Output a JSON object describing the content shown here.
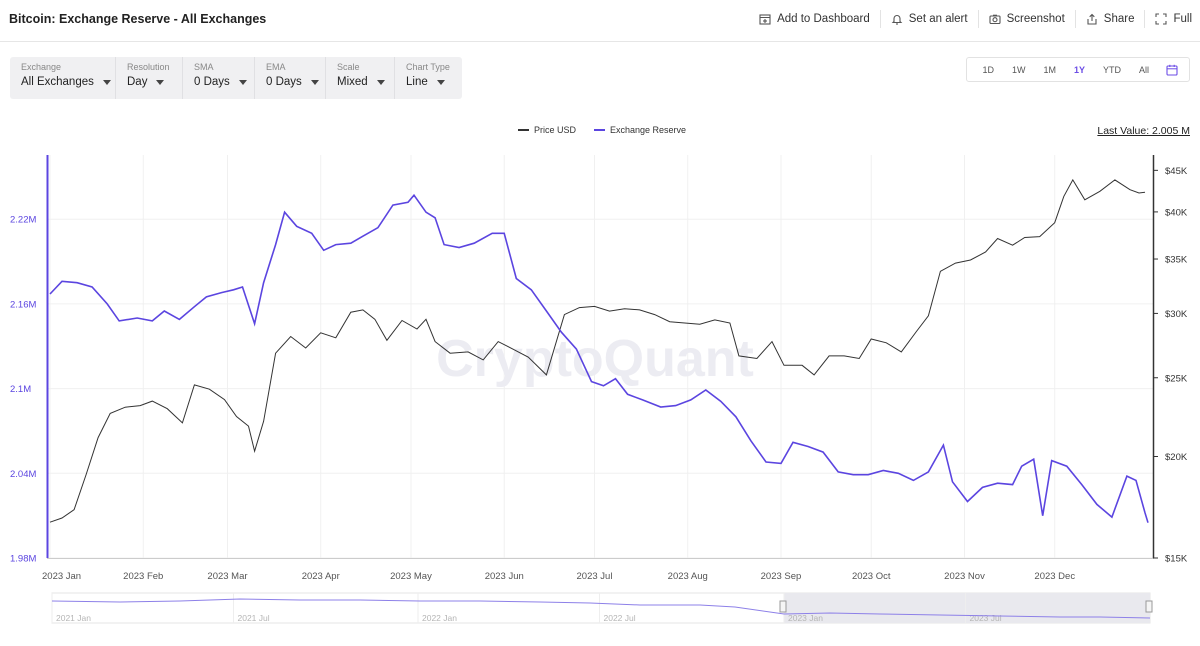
{
  "header": {
    "title": "Bitcoin: Exchange Reserve - All Exchanges",
    "actions": [
      {
        "label": "Add to Dashboard",
        "icon": "add-dashboard-icon"
      },
      {
        "label": "Set an alert",
        "icon": "bell-icon"
      },
      {
        "label": "Screenshot",
        "icon": "camera-icon"
      },
      {
        "label": "Share",
        "icon": "share-icon"
      },
      {
        "label": "Full",
        "icon": "fullscreen-icon"
      }
    ]
  },
  "filters": [
    {
      "label": "Exchange",
      "value": "All Exchanges"
    },
    {
      "label": "Resolution",
      "value": "Day"
    },
    {
      "label": "SMA",
      "value": "0 Days"
    },
    {
      "label": "EMA",
      "value": "0 Days"
    },
    {
      "label": "Scale",
      "value": "Mixed"
    },
    {
      "label": "Chart Type",
      "value": "Line"
    }
  ],
  "ranges": {
    "options": [
      "1D",
      "1W",
      "1M",
      "1Y",
      "YTD",
      "All"
    ],
    "active": "1Y",
    "calendar_icon": "calendar-icon"
  },
  "legend": {
    "price_label": "Price USD",
    "reserve_label": "Exchange Reserve"
  },
  "last_value": "Last Value: 2.005 M",
  "watermark": "CryptoQuant",
  "colors": {
    "reserve": "#5b45e0",
    "price": "#333333",
    "grid": "#f0f0f0",
    "navigator_fill": "#e9e9ee"
  },
  "chart_data": {
    "type": "line",
    "x_tick_labels": [
      "2023 Jan",
      "2023 Feb",
      "2023 Mar",
      "2023 Apr",
      "2023 May",
      "2023 Jun",
      "2023 Jul",
      "2023 Aug",
      "2023 Sep",
      "2023 Oct",
      "2023 Nov",
      "2023 Dec"
    ],
    "left_axis": {
      "tick_labels": [
        "1.98M",
        "2.04M",
        "2.1M",
        "2.16M",
        "2.22M"
      ],
      "ticks": [
        1.98,
        2.04,
        2.1,
        2.16,
        2.22
      ],
      "ylim": [
        1.98,
        2.2655
      ],
      "unit": "M BTC"
    },
    "right_axis": {
      "tick_labels": [
        "$15K",
        "$20K",
        "$25K",
        "$30K",
        "$35K",
        "$40K",
        "$45K"
      ],
      "ticks": [
        15000,
        20000,
        25000,
        30000,
        35000,
        40000,
        45000
      ],
      "scale": "log",
      "ylim": [
        15000,
        47000
      ]
    },
    "series": [
      {
        "name": "Exchange Reserve",
        "axis": "left",
        "points": [
          [
            "2023-01-01",
            2.167
          ],
          [
            "2023-01-05",
            2.176
          ],
          [
            "2023-01-10",
            2.175
          ],
          [
            "2023-01-15",
            2.172
          ],
          [
            "2023-01-20",
            2.16
          ],
          [
            "2023-01-24",
            2.148
          ],
          [
            "2023-01-30",
            2.15
          ],
          [
            "2023-02-04",
            2.148
          ],
          [
            "2023-02-08",
            2.155
          ],
          [
            "2023-02-13",
            2.149
          ],
          [
            "2023-02-18",
            2.158
          ],
          [
            "2023-02-22",
            2.165
          ],
          [
            "2023-02-27",
            2.168
          ],
          [
            "2023-03-03",
            2.17
          ],
          [
            "2023-03-06",
            2.172
          ],
          [
            "2023-03-10",
            2.146
          ],
          [
            "2023-03-13",
            2.175
          ],
          [
            "2023-03-17",
            2.202
          ],
          [
            "2023-03-20",
            2.225
          ],
          [
            "2023-03-24",
            2.215
          ],
          [
            "2023-03-29",
            2.21
          ],
          [
            "2023-04-02",
            2.198
          ],
          [
            "2023-04-06",
            2.202
          ],
          [
            "2023-04-11",
            2.203
          ],
          [
            "2023-04-15",
            2.208
          ],
          [
            "2023-04-20",
            2.214
          ],
          [
            "2023-04-25",
            2.23
          ],
          [
            "2023-04-30",
            2.232
          ],
          [
            "2023-05-02",
            2.237
          ],
          [
            "2023-05-06",
            2.225
          ],
          [
            "2023-05-09",
            2.221
          ],
          [
            "2023-05-12",
            2.202
          ],
          [
            "2023-05-17",
            2.2
          ],
          [
            "2023-05-22",
            2.203
          ],
          [
            "2023-05-28",
            2.21
          ],
          [
            "2023-06-01",
            2.21
          ],
          [
            "2023-06-05",
            2.178
          ],
          [
            "2023-06-10",
            2.17
          ],
          [
            "2023-06-15",
            2.155
          ],
          [
            "2023-06-20",
            2.14
          ],
          [
            "2023-06-25",
            2.128
          ],
          [
            "2023-06-30",
            2.105
          ],
          [
            "2023-07-04",
            2.102
          ],
          [
            "2023-07-08",
            2.107
          ],
          [
            "2023-07-12",
            2.096
          ],
          [
            "2023-07-17",
            2.092
          ],
          [
            "2023-07-23",
            2.087
          ],
          [
            "2023-07-28",
            2.088
          ],
          [
            "2023-08-02",
            2.092
          ],
          [
            "2023-08-07",
            2.099
          ],
          [
            "2023-08-12",
            2.091
          ],
          [
            "2023-08-17",
            2.08
          ],
          [
            "2023-08-22",
            2.063
          ],
          [
            "2023-08-27",
            2.048
          ],
          [
            "2023-09-01",
            2.047
          ],
          [
            "2023-09-05",
            2.062
          ],
          [
            "2023-09-10",
            2.059
          ],
          [
            "2023-09-15",
            2.055
          ],
          [
            "2023-09-20",
            2.041
          ],
          [
            "2023-09-25",
            2.039
          ],
          [
            "2023-09-30",
            2.039
          ],
          [
            "2023-10-05",
            2.042
          ],
          [
            "2023-10-10",
            2.04
          ],
          [
            "2023-10-15",
            2.035
          ],
          [
            "2023-10-20",
            2.041
          ],
          [
            "2023-10-25",
            2.06
          ],
          [
            "2023-10-28",
            2.034
          ],
          [
            "2023-11-02",
            2.02
          ],
          [
            "2023-11-07",
            2.03
          ],
          [
            "2023-11-12",
            2.033
          ],
          [
            "2023-11-17",
            2.032
          ],
          [
            "2023-11-20",
            2.045
          ],
          [
            "2023-11-24",
            2.05
          ],
          [
            "2023-11-27",
            2.01
          ],
          [
            "2023-11-30",
            2.049
          ],
          [
            "2023-12-05",
            2.045
          ],
          [
            "2023-12-10",
            2.032
          ],
          [
            "2023-12-15",
            2.018
          ],
          [
            "2023-12-20",
            2.009
          ],
          [
            "2023-12-25",
            2.038
          ],
          [
            "2023-12-28",
            2.035
          ],
          [
            "2023-12-31",
            2.012
          ],
          [
            "2024-01-01",
            2.005
          ]
        ]
      },
      {
        "name": "Price USD",
        "axis": "right",
        "points": [
          [
            "2023-01-01",
            16600
          ],
          [
            "2023-01-05",
            16800
          ],
          [
            "2023-01-09",
            17200
          ],
          [
            "2023-01-13",
            19000
          ],
          [
            "2023-01-17",
            21100
          ],
          [
            "2023-01-21",
            22600
          ],
          [
            "2023-01-26",
            23000
          ],
          [
            "2023-01-31",
            23100
          ],
          [
            "2023-02-04",
            23400
          ],
          [
            "2023-02-09",
            22900
          ],
          [
            "2023-02-14",
            22000
          ],
          [
            "2023-02-18",
            24500
          ],
          [
            "2023-02-23",
            24200
          ],
          [
            "2023-02-28",
            23500
          ],
          [
            "2023-03-04",
            22400
          ],
          [
            "2023-03-08",
            21800
          ],
          [
            "2023-03-10",
            20300
          ],
          [
            "2023-03-13",
            22100
          ],
          [
            "2023-03-17",
            26800
          ],
          [
            "2023-03-22",
            28100
          ],
          [
            "2023-03-27",
            27200
          ],
          [
            "2023-04-01",
            28400
          ],
          [
            "2023-04-06",
            28000
          ],
          [
            "2023-04-11",
            30100
          ],
          [
            "2023-04-15",
            30300
          ],
          [
            "2023-04-19",
            29500
          ],
          [
            "2023-04-23",
            27800
          ],
          [
            "2023-04-28",
            29400
          ],
          [
            "2023-05-03",
            28700
          ],
          [
            "2023-05-06",
            29500
          ],
          [
            "2023-05-09",
            27700
          ],
          [
            "2023-05-14",
            26800
          ],
          [
            "2023-05-20",
            26900
          ],
          [
            "2023-05-25",
            26300
          ],
          [
            "2023-05-30",
            27700
          ],
          [
            "2023-06-04",
            27100
          ],
          [
            "2023-06-09",
            26500
          ],
          [
            "2023-06-15",
            25200
          ],
          [
            "2023-06-21",
            29900
          ],
          [
            "2023-06-26",
            30500
          ],
          [
            "2023-07-01",
            30600
          ],
          [
            "2023-07-06",
            30200
          ],
          [
            "2023-07-11",
            30400
          ],
          [
            "2023-07-16",
            30300
          ],
          [
            "2023-07-21",
            29900
          ],
          [
            "2023-07-26",
            29300
          ],
          [
            "2023-07-31",
            29200
          ],
          [
            "2023-08-05",
            29100
          ],
          [
            "2023-08-10",
            29450
          ],
          [
            "2023-08-15",
            29200
          ],
          [
            "2023-08-18",
            26600
          ],
          [
            "2023-08-24",
            26400
          ],
          [
            "2023-08-29",
            27700
          ],
          [
            "2023-09-02",
            25900
          ],
          [
            "2023-09-08",
            25900
          ],
          [
            "2023-09-12",
            25200
          ],
          [
            "2023-09-17",
            26600
          ],
          [
            "2023-09-22",
            26600
          ],
          [
            "2023-09-27",
            26400
          ],
          [
            "2023-10-01",
            27900
          ],
          [
            "2023-10-06",
            27600
          ],
          [
            "2023-10-11",
            26900
          ],
          [
            "2023-10-16",
            28500
          ],
          [
            "2023-10-20",
            29800
          ],
          [
            "2023-10-24",
            33800
          ],
          [
            "2023-10-29",
            34600
          ],
          [
            "2023-11-03",
            34900
          ],
          [
            "2023-11-08",
            35700
          ],
          [
            "2023-11-12",
            37100
          ],
          [
            "2023-11-17",
            36400
          ],
          [
            "2023-11-21",
            37200
          ],
          [
            "2023-11-26",
            37300
          ],
          [
            "2023-12-01",
            38800
          ],
          [
            "2023-12-04",
            41800
          ],
          [
            "2023-12-07",
            43800
          ],
          [
            "2023-12-11",
            41400
          ],
          [
            "2023-12-16",
            42400
          ],
          [
            "2023-12-21",
            43800
          ],
          [
            "2023-12-26",
            42600
          ],
          [
            "2023-12-29",
            42200
          ],
          [
            "2023-12-31",
            42300
          ]
        ]
      }
    ],
    "navigator": {
      "tick_labels": [
        "2021 Jan",
        "2021 Jul",
        "2022 Jan",
        "2022 Jul",
        "2023 Jan",
        "2023 Jul"
      ]
    }
  }
}
